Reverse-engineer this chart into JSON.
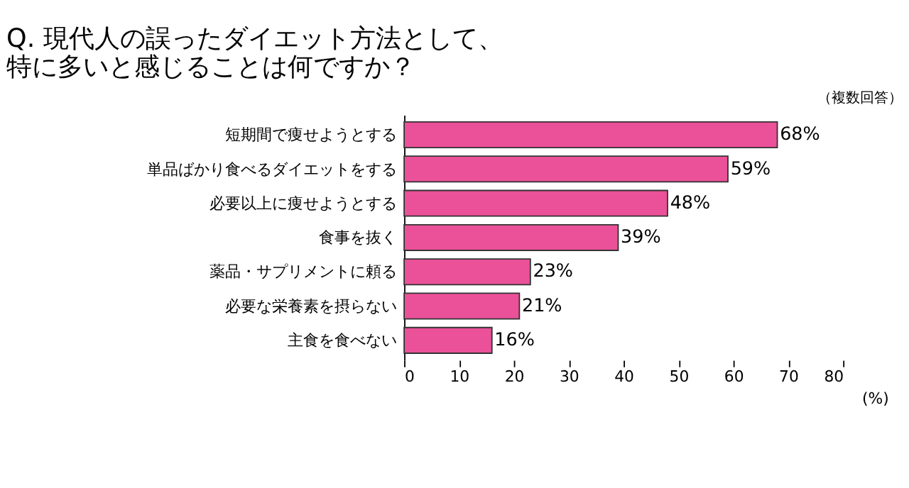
{
  "chart_data": {
    "type": "bar",
    "orientation": "horizontal",
    "title": "Q. 現代人の誤ったダイエット方法として、",
    "subtitle": "特に多いと感じることは何ですか？",
    "annotations": [
      "（複数回答）"
    ],
    "categories": [
      "短期間で痩せようとする",
      "単品ばかり食べるダイエットをする",
      "必要以上に痩せようとする",
      "食事を抜く",
      "薬品・サプリメントに頼る",
      "必要な栄養素を摂らない",
      "主食を食べない"
    ],
    "values": [
      68,
      59,
      48,
      39,
      23,
      21,
      16
    ],
    "value_labels": [
      "68%",
      "59%",
      "48%",
      "39%",
      "23%",
      "21%",
      "16%"
    ],
    "color": "#ea5198",
    "xlabel": "(%)",
    "xlim": [
      0,
      80
    ],
    "xticks": [
      0,
      10,
      20,
      30,
      40,
      50,
      60,
      70,
      80
    ],
    "grid": false
  }
}
